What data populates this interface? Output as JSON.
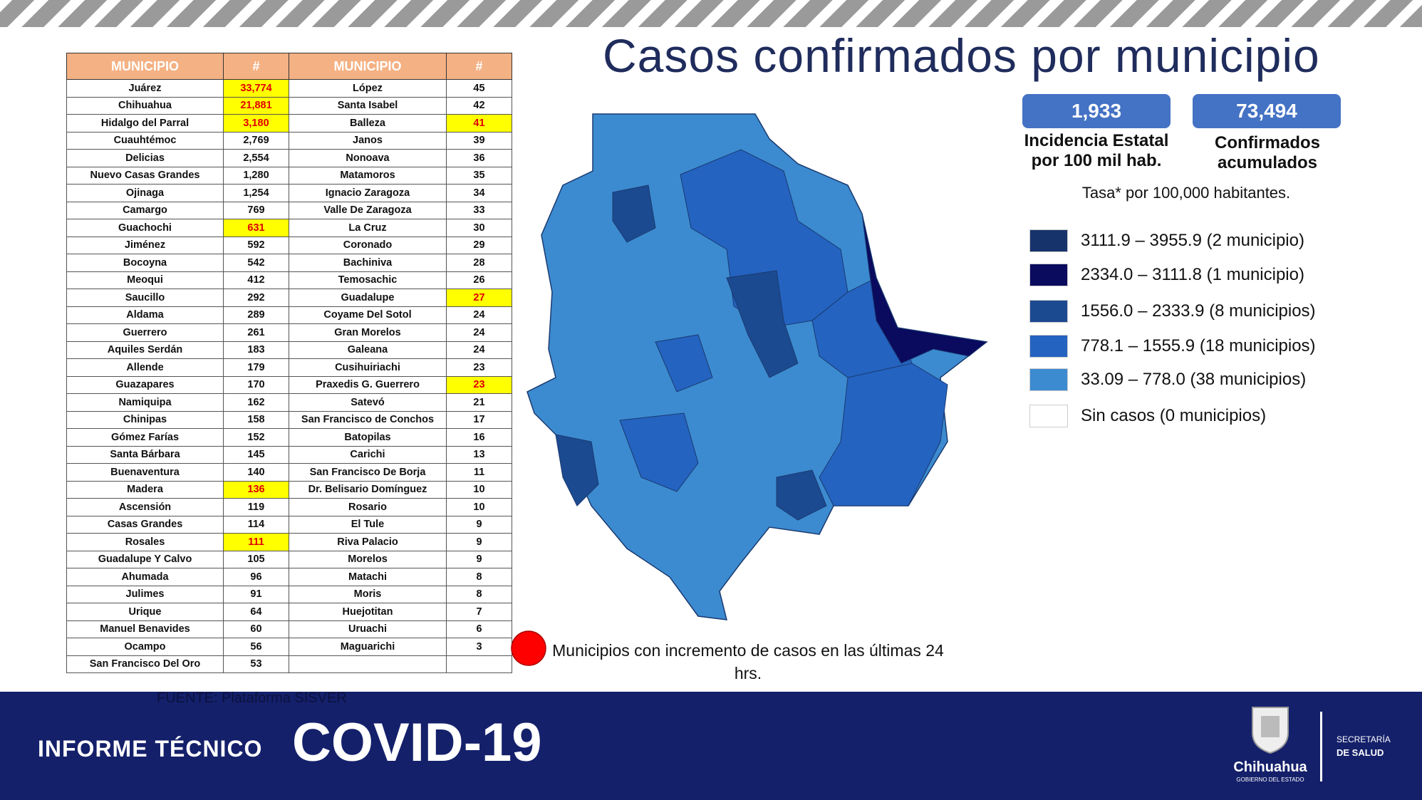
{
  "title": "Casos confirmados por municipio",
  "stats": [
    {
      "value": "1,933",
      "label": "Incidencia Estatal por 100 mil hab."
    },
    {
      "value": "73,494",
      "label": "Confirmados acumulados"
    }
  ],
  "rate_note": "Tasa* por 100,000 habitantes.",
  "legend": [
    {
      "label": "3111.9 – 3955.9 (2 municipio)",
      "color": "#17336b"
    },
    {
      "label": "2334.0  – 3111.8 (1 municipio)",
      "color": "#0a0a5e"
    },
    {
      "label": "1556.0 – 2333.9 (8 municipios)",
      "color": "#1c4a90"
    },
    {
      "label": "778.1 – 1555.9 (18 municipios)",
      "color": "#2463c0"
    },
    {
      "label": " 33.09 – 778.0 (38 municipios)",
      "color": "#3c8bd0"
    },
    {
      "label": "Sin casos (0 municipios)",
      "color": "#ffffff"
    }
  ],
  "increase_note": "Municipios con incremento de casos en las últimas 24 hrs.",
  "source": "FUENTE: Plataforma SISVER",
  "table": {
    "header": [
      "MUNICIPIO",
      "#",
      "MUNICIPIO",
      "#"
    ],
    "rows": [
      [
        "Juárez",
        "33,774",
        "López",
        "45"
      ],
      [
        "Chihuahua",
        "21,881",
        "Santa Isabel",
        "42"
      ],
      [
        "Hidalgo del Parral",
        "3,180",
        "Balleza",
        "41"
      ],
      [
        "Cuauhtémoc",
        "2,769",
        "Janos",
        "39"
      ],
      [
        "Delicias",
        "2,554",
        "Nonoava",
        "36"
      ],
      [
        "Nuevo Casas Grandes",
        "1,280",
        "Matamoros",
        "35"
      ],
      [
        "Ojinaga",
        "1,254",
        "Ignacio Zaragoza",
        "34"
      ],
      [
        "Camargo",
        "769",
        "Valle De Zaragoza",
        "33"
      ],
      [
        "Guachochi",
        "631",
        "La Cruz",
        "30"
      ],
      [
        "Jiménez",
        "592",
        "Coronado",
        "29"
      ],
      [
        "Bocoyna",
        "542",
        "Bachiniva",
        "28"
      ],
      [
        "Meoqui",
        "412",
        "Temosachic",
        "26"
      ],
      [
        "Saucillo",
        "292",
        "Guadalupe",
        "27"
      ],
      [
        "Aldama",
        "289",
        "Coyame Del Sotol",
        "24"
      ],
      [
        "Guerrero",
        "261",
        "Gran Morelos",
        "24"
      ],
      [
        "Aquiles Serdán",
        "183",
        "Galeana",
        "24"
      ],
      [
        "Allende",
        "179",
        "Cusihuiriachi",
        "23"
      ],
      [
        "Guazapares",
        "170",
        "Praxedis G. Guerrero",
        "23"
      ],
      [
        "Namiquipa",
        "162",
        "Satevó",
        "21"
      ],
      [
        "Chinipas",
        "158",
        "San Francisco de Conchos",
        "17"
      ],
      [
        "Gómez Farías",
        "152",
        "Batopilas",
        "16"
      ],
      [
        "Santa Bárbara",
        "145",
        "Carichi",
        "13"
      ],
      [
        "Buenaventura",
        "140",
        "San Francisco De Borja",
        "11"
      ],
      [
        "Madera",
        "136",
        "Dr. Belisario Domínguez",
        "10"
      ],
      [
        "Ascensión",
        "119",
        "Rosario",
        "10"
      ],
      [
        "Casas Grandes",
        "114",
        "El Tule",
        "9"
      ],
      [
        "Rosales",
        "111",
        "Riva Palacio",
        "9"
      ],
      [
        "Guadalupe Y Calvo",
        "105",
        "Morelos",
        "9"
      ],
      [
        "Ahumada",
        "96",
        "Matachi",
        "8"
      ],
      [
        "Julimes",
        "91",
        "Moris",
        "8"
      ],
      [
        "Urique",
        "64",
        "Huejotitan",
        "7"
      ],
      [
        "Manuel Benavides",
        "60",
        "Uruachi",
        "6"
      ],
      [
        "Ocampo",
        "56",
        "Maguarichi",
        "3"
      ],
      [
        "San Francisco Del Oro",
        "53"
      ]
    ],
    "highlighted": [
      [
        0,
        1
      ],
      [
        1,
        1
      ],
      [
        2,
        1
      ],
      [
        2,
        3
      ],
      [
        8,
        1
      ],
      [
        12,
        3
      ],
      [
        17,
        3
      ],
      [
        23,
        1
      ],
      [
        26,
        1
      ]
    ]
  },
  "footer": {
    "label": "INFORME TÉCNICO",
    "title": "COVID-19",
    "logo_name": "Chihuahua",
    "logo_sub": "GOBIERNO DEL ESTADO",
    "dept": [
      "SECRETARÍA",
      "DE SALUD"
    ]
  }
}
